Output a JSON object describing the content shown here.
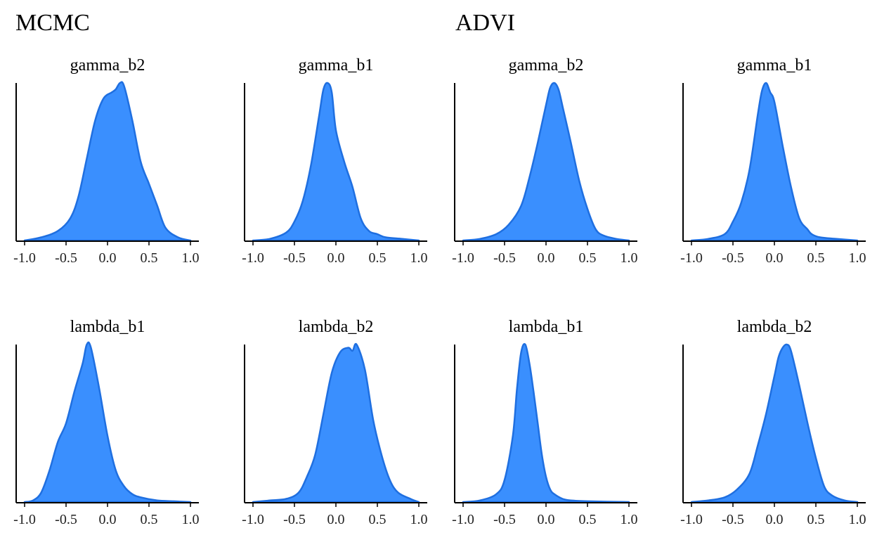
{
  "group_titles": [
    "MCMC",
    "ADVI"
  ],
  "style": {
    "fill": "#3a8ffe",
    "stroke": "#1f6fe0"
  },
  "chart_data": [
    {
      "type": "area",
      "group": "MCMC",
      "title": "gamma_b2",
      "xlim": [
        -1.0,
        1.0
      ],
      "x_ticks": [
        -1.0,
        -0.5,
        0.0,
        0.5,
        1.0
      ],
      "tick_labels": [
        "-1.0",
        "-0.5",
        "0.0",
        "0.5",
        "1.0"
      ],
      "x": [
        -1.0,
        -0.8,
        -0.6,
        -0.45,
        -0.35,
        -0.25,
        -0.15,
        -0.05,
        0.05,
        0.1,
        0.15,
        0.2,
        0.3,
        0.4,
        0.5,
        0.6,
        0.7,
        0.85,
        1.0
      ],
      "y": [
        0.0,
        0.02,
        0.06,
        0.14,
        0.28,
        0.52,
        0.76,
        0.9,
        0.94,
        0.96,
        1.0,
        0.98,
        0.76,
        0.5,
        0.36,
        0.22,
        0.08,
        0.02,
        0.0
      ]
    },
    {
      "type": "area",
      "group": "MCMC",
      "title": "gamma_b1",
      "xlim": [
        -1.0,
        1.0
      ],
      "x_ticks": [
        -1.0,
        -0.5,
        0.0,
        0.5,
        1.0
      ],
      "tick_labels": [
        "-1.0",
        "-0.5",
        "0.0",
        "0.5",
        "1.0"
      ],
      "x": [
        -1.0,
        -0.8,
        -0.6,
        -0.5,
        -0.4,
        -0.3,
        -0.2,
        -0.15,
        -0.1,
        -0.05,
        0.0,
        0.1,
        0.2,
        0.3,
        0.4,
        0.5,
        0.6,
        0.8,
        1.0
      ],
      "y": [
        0.0,
        0.01,
        0.05,
        0.12,
        0.25,
        0.48,
        0.8,
        0.96,
        1.0,
        0.94,
        0.7,
        0.5,
        0.34,
        0.14,
        0.06,
        0.04,
        0.02,
        0.01,
        0.0
      ]
    },
    {
      "type": "area",
      "group": "ADVI",
      "title": "gamma_b2",
      "xlim": [
        -1.0,
        1.0
      ],
      "x_ticks": [
        -1.0,
        -0.5,
        0.0,
        0.5,
        1.0
      ],
      "tick_labels": [
        "-1.0",
        "-0.5",
        "0.0",
        "0.5",
        "1.0"
      ],
      "x": [
        -1.0,
        -0.8,
        -0.6,
        -0.45,
        -0.3,
        -0.2,
        -0.1,
        0.0,
        0.05,
        0.1,
        0.15,
        0.2,
        0.3,
        0.4,
        0.5,
        0.6,
        0.7,
        0.85,
        1.0
      ],
      "y": [
        0.0,
        0.01,
        0.04,
        0.1,
        0.22,
        0.4,
        0.62,
        0.86,
        0.97,
        1.0,
        0.96,
        0.85,
        0.62,
        0.38,
        0.2,
        0.07,
        0.03,
        0.01,
        0.0
      ]
    },
    {
      "type": "area",
      "group": "ADVI",
      "title": "gamma_b1",
      "xlim": [
        -1.0,
        1.0
      ],
      "x_ticks": [
        -1.0,
        -0.5,
        0.0,
        0.5,
        1.0
      ],
      "tick_labels": [
        "-1.0",
        "-0.5",
        "0.0",
        "0.5",
        "1.0"
      ],
      "x": [
        -1.0,
        -0.8,
        -0.6,
        -0.5,
        -0.4,
        -0.3,
        -0.2,
        -0.15,
        -0.1,
        -0.05,
        0.0,
        0.1,
        0.2,
        0.3,
        0.4,
        0.45,
        0.55,
        0.75,
        1.0
      ],
      "y": [
        0.0,
        0.01,
        0.04,
        0.12,
        0.24,
        0.45,
        0.8,
        0.95,
        1.0,
        0.94,
        0.88,
        0.6,
        0.34,
        0.14,
        0.07,
        0.04,
        0.02,
        0.01,
        0.0
      ]
    },
    {
      "type": "area",
      "group": "MCMC",
      "title": "lambda_b1",
      "xlim": [
        -1.0,
        1.0
      ],
      "x_ticks": [
        -1.0,
        -0.5,
        0.0,
        0.5,
        1.0
      ],
      "tick_labels": [
        "-1.0",
        "-0.5",
        "0.0",
        "0.5",
        "1.0"
      ],
      "x": [
        -1.0,
        -0.9,
        -0.8,
        -0.7,
        -0.6,
        -0.5,
        -0.4,
        -0.3,
        -0.25,
        -0.2,
        -0.1,
        0.0,
        0.1,
        0.2,
        0.3,
        0.4,
        0.6,
        0.8,
        1.0
      ],
      "y": [
        0.0,
        0.01,
        0.06,
        0.2,
        0.38,
        0.5,
        0.7,
        0.88,
        1.0,
        0.98,
        0.72,
        0.42,
        0.2,
        0.1,
        0.05,
        0.03,
        0.01,
        0.005,
        0.0
      ]
    },
    {
      "type": "area",
      "group": "MCMC",
      "title": "lambda_b2",
      "xlim": [
        -1.0,
        1.0
      ],
      "x_ticks": [
        -1.0,
        -0.5,
        0.0,
        0.5,
        1.0
      ],
      "tick_labels": [
        "-1.0",
        "-0.5",
        "0.0",
        "0.5",
        "1.0"
      ],
      "x": [
        -1.0,
        -0.8,
        -0.6,
        -0.45,
        -0.35,
        -0.25,
        -0.15,
        -0.05,
        0.05,
        0.15,
        0.2,
        0.25,
        0.35,
        0.45,
        0.55,
        0.65,
        0.75,
        0.9,
        1.0
      ],
      "y": [
        0.0,
        0.01,
        0.02,
        0.06,
        0.16,
        0.3,
        0.56,
        0.82,
        0.95,
        0.98,
        0.96,
        1.0,
        0.84,
        0.52,
        0.3,
        0.14,
        0.06,
        0.02,
        0.0
      ]
    },
    {
      "type": "area",
      "group": "ADVI",
      "title": "lambda_b1",
      "xlim": [
        -1.0,
        1.0
      ],
      "x_ticks": [
        -1.0,
        -0.5,
        0.0,
        0.5,
        1.0
      ],
      "tick_labels": [
        "-1.0",
        "-0.5",
        "0.0",
        "0.5",
        "1.0"
      ],
      "x": [
        -1.0,
        -0.8,
        -0.6,
        -0.5,
        -0.4,
        -0.35,
        -0.3,
        -0.25,
        -0.2,
        -0.15,
        -0.1,
        -0.05,
        0.0,
        0.05,
        0.1,
        0.2,
        0.3,
        0.5,
        1.0
      ],
      "y": [
        0.0,
        0.01,
        0.05,
        0.14,
        0.42,
        0.72,
        0.95,
        1.0,
        0.88,
        0.7,
        0.5,
        0.3,
        0.16,
        0.08,
        0.05,
        0.02,
        0.01,
        0.005,
        0.0
      ]
    },
    {
      "type": "area",
      "group": "ADVI",
      "title": "lambda_b2",
      "xlim": [
        -1.0,
        1.0
      ],
      "x_ticks": [
        -1.0,
        -0.5,
        0.0,
        0.5,
        1.0
      ],
      "tick_labels": [
        "-1.0",
        "-0.5",
        "0.0",
        "0.5",
        "1.0"
      ],
      "x": [
        -1.0,
        -0.8,
        -0.6,
        -0.45,
        -0.3,
        -0.2,
        -0.1,
        0.0,
        0.05,
        0.1,
        0.15,
        0.2,
        0.3,
        0.4,
        0.5,
        0.6,
        0.7,
        0.85,
        1.0
      ],
      "y": [
        0.0,
        0.01,
        0.03,
        0.08,
        0.18,
        0.36,
        0.56,
        0.8,
        0.92,
        0.98,
        1.0,
        0.96,
        0.74,
        0.5,
        0.28,
        0.1,
        0.04,
        0.01,
        0.0
      ]
    }
  ]
}
